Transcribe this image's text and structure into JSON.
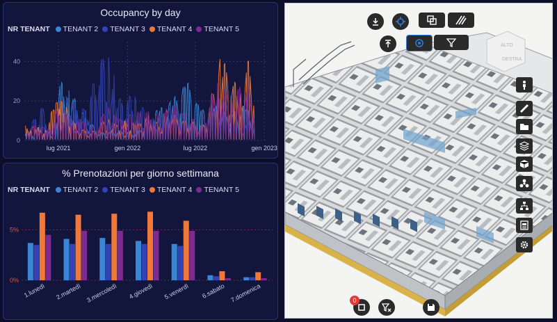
{
  "colors": {
    "tenant2": "#3a86d4",
    "tenant3": "#3343b3",
    "tenant4": "#f0793a",
    "tenant5": "#7d2a91",
    "panel_bg": "#12163c",
    "grid": "#3b4174",
    "accent": "#2f7de1"
  },
  "legend": {
    "title": "NR TENANT",
    "items": [
      "TENANT 2",
      "TENANT 3",
      "TENANT 4",
      "TENANT 5"
    ]
  },
  "chart_data": [
    {
      "type": "line",
      "title": "Occupancy by day",
      "xlabel": "",
      "ylabel": "",
      "x_ticks": [
        "lug 2021",
        "gen 2022",
        "lug 2022",
        "gen 2023"
      ],
      "y_ticks": [
        0,
        20,
        40
      ],
      "x_range": [
        "2021-04-01",
        "2023-01-10"
      ],
      "ylim": [
        0,
        50
      ],
      "grid": true,
      "legend_position": "top-left",
      "series": [
        {
          "name": "TENANT 2",
          "values": [
            [
              2,
              4
            ],
            [
              20,
              3
            ],
            [
              40,
              5
            ],
            [
              75,
              3
            ],
            [
              95,
              22
            ],
            [
              105,
              25
            ],
            [
              120,
              20
            ],
            [
              160,
              10
            ],
            [
              200,
              3
            ],
            [
              250,
              4
            ],
            [
              300,
              3
            ],
            [
              355,
              12
            ],
            [
              390,
              15
            ],
            [
              435,
              23
            ],
            [
              470,
              12
            ],
            [
              505,
              14
            ],
            [
              545,
              10
            ],
            [
              590,
              14
            ],
            [
              615,
              5
            ]
          ]
        },
        {
          "name": "TENANT 3",
          "values": [
            [
              5,
              5
            ],
            [
              25,
              8
            ],
            [
              45,
              14
            ],
            [
              70,
              5
            ],
            [
              95,
              16
            ],
            [
              110,
              18
            ],
            [
              160,
              12
            ],
            [
              225,
              40
            ],
            [
              240,
              28
            ],
            [
              250,
              16
            ],
            [
              295,
              18
            ],
            [
              335,
              8
            ],
            [
              390,
              13
            ],
            [
              470,
              5
            ],
            [
              505,
              12
            ],
            [
              545,
              16
            ],
            [
              580,
              6
            ],
            [
              615,
              8
            ]
          ]
        },
        {
          "name": "TENANT 4",
          "values": [
            [
              3,
              6
            ],
            [
              15,
              6
            ],
            [
              30,
              5
            ],
            [
              55,
              5
            ],
            [
              80,
              14
            ],
            [
              95,
              16
            ],
            [
              110,
              14
            ],
            [
              140,
              5
            ],
            [
              180,
              3
            ],
            [
              225,
              10
            ],
            [
              245,
              6
            ],
            [
              275,
              8
            ],
            [
              300,
              6
            ],
            [
              330,
              10
            ],
            [
              360,
              6
            ],
            [
              380,
              12
            ],
            [
              400,
              10
            ],
            [
              420,
              8
            ],
            [
              480,
              6
            ],
            [
              525,
              34
            ],
            [
              555,
              22
            ],
            [
              580,
              26
            ],
            [
              600,
              32
            ],
            [
              615,
              20
            ]
          ]
        },
        {
          "name": "TENANT 5",
          "values": [
            [
              5,
              3
            ],
            [
              35,
              7
            ],
            [
              60,
              4
            ],
            [
              90,
              12
            ],
            [
              115,
              10
            ],
            [
              150,
              8
            ],
            [
              190,
              5
            ],
            [
              225,
              15
            ],
            [
              250,
              8
            ],
            [
              280,
              10
            ],
            [
              320,
              12
            ],
            [
              350,
              10
            ],
            [
              400,
              14
            ],
            [
              470,
              6
            ],
            [
              515,
              24
            ],
            [
              550,
              18
            ],
            [
              580,
              22
            ],
            [
              600,
              20
            ],
            [
              615,
              14
            ]
          ]
        }
      ]
    },
    {
      "type": "bar",
      "title": "% Prenotazioni per giorno settimana",
      "xlabel": "",
      "ylabel": "",
      "categories": [
        "1.lunedì",
        "2.martedì",
        "3.mercoledì",
        "4.giovedì",
        "5.venerdì",
        "6.sabato",
        "7.domenica"
      ],
      "y_ticks": [
        "0%",
        "5%"
      ],
      "ylim": [
        0,
        8
      ],
      "grid": true,
      "legend_position": "top-left",
      "series": [
        {
          "name": "TENANT 2",
          "values": [
            3.7,
            4.1,
            4.2,
            3.9,
            3.6,
            0.5,
            0.3
          ]
        },
        {
          "name": "TENANT 3",
          "values": [
            3.5,
            3.6,
            3.6,
            3.6,
            3.4,
            0.4,
            0.3
          ]
        },
        {
          "name": "TENANT 4",
          "values": [
            6.7,
            6.5,
            6.6,
            6.8,
            5.9,
            0.9,
            0.8
          ]
        },
        {
          "name": "TENANT 5",
          "values": [
            4.5,
            4.9,
            4.9,
            4.9,
            4.9,
            0.2,
            0.2
          ]
        }
      ]
    }
  ],
  "viewer": {
    "badge_count": "0",
    "compass_labels": [
      "ALTO",
      "DESTRA"
    ],
    "top_tools": [
      "download-icon",
      "target-icon",
      "copy-icon",
      "hatch-icon",
      "upload-icon",
      "focus-icon",
      "filter-icon"
    ],
    "side_tools": [
      "person-icon",
      "ruler-icon",
      "folder-icon",
      "layers-icon",
      "cube-icon",
      "cluster-icon",
      "hierarchy-icon",
      "document-icon",
      "gear-icon"
    ],
    "bottom_tools": [
      "square-icon",
      "filter-clear-icon",
      "save-icon"
    ]
  }
}
